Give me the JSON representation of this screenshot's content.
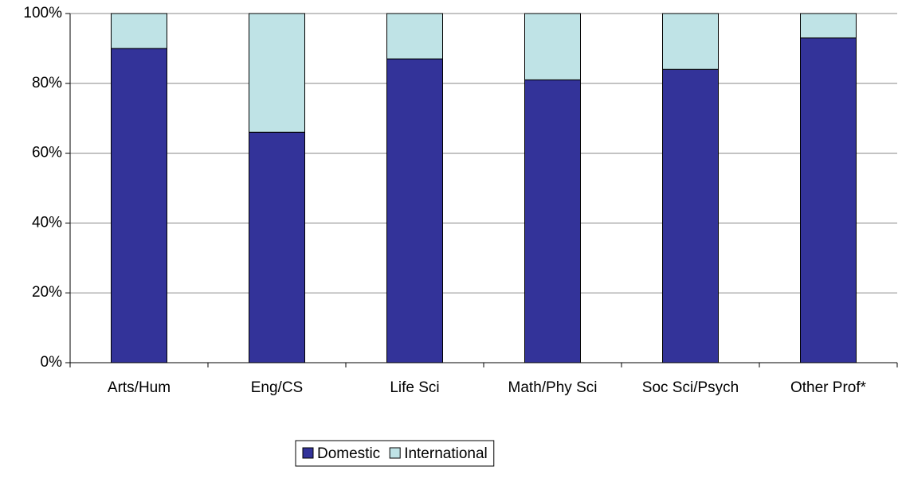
{
  "chart_data": {
    "type": "stacked_bar",
    "categories": [
      "Arts/Hum",
      "Eng/CS",
      "Life Sci",
      "Math/Phy Sci",
      "Soc Sci/Psych",
      "Other Prof*"
    ],
    "series": [
      {
        "name": "Domestic",
        "color": "#333399",
        "values": [
          90,
          66,
          87,
          81,
          84,
          93
        ]
      },
      {
        "name": "International",
        "color": "#bfe3e6",
        "values": [
          10,
          34,
          13,
          19,
          16,
          7
        ]
      }
    ],
    "ylim": [
      0,
      100
    ],
    "yticks": [
      {
        "value": 0,
        "label": "0%"
      },
      {
        "value": 20,
        "label": "20%"
      },
      {
        "value": 40,
        "label": "40%"
      },
      {
        "value": 60,
        "label": "60%"
      },
      {
        "value": 80,
        "label": "80%"
      },
      {
        "value": 100,
        "label": "100%"
      }
    ],
    "grid": true,
    "legend": "bottom"
  }
}
